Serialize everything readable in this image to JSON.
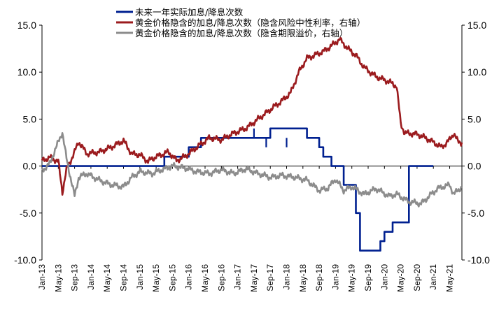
{
  "chart_data": {
    "type": "line",
    "ylim": [
      -10,
      15
    ],
    "y_ticks": [
      "15.0",
      "10.0",
      "5.0",
      "0.0",
      "-5.0",
      "-10.0"
    ],
    "y_ticks_right": [
      "15.0",
      "10.0",
      "5.0",
      "0.0",
      "-5.0",
      "-10.0"
    ],
    "x_range": [
      "2013-01",
      "2021-08"
    ],
    "x_ticks": [
      "Jan-13",
      "May-13",
      "Sep-13",
      "Jan-14",
      "May-14",
      "Sep-14",
      "Jan-15",
      "May-15",
      "Sep-15",
      "Jan-16",
      "May-16",
      "Sep-16",
      "Jan-17",
      "May-17",
      "Sep-17",
      "Jan-18",
      "May-18",
      "Sep-18",
      "Jan-19",
      "May-19",
      "Sep-19",
      "Jan-20",
      "May-20",
      "Sep-20",
      "Jan-21",
      "May-21"
    ],
    "legend_position": "top",
    "grid": false,
    "series": [
      {
        "name": "未来一年实际加息/降息次数",
        "color": "#002090",
        "step": true,
        "points": [
          [
            "2013-01",
            0
          ],
          [
            "2015-01",
            0
          ],
          [
            "2015-07",
            1
          ],
          [
            "2016-01",
            2
          ],
          [
            "2016-04",
            3
          ],
          [
            "2017-08",
            3
          ],
          [
            "2017-09",
            4
          ],
          [
            "2018-06",
            3
          ],
          [
            "2018-09",
            2
          ],
          [
            "2018-10",
            1
          ],
          [
            "2018-12",
            0
          ],
          [
            "2019-03",
            -2
          ],
          [
            "2019-06",
            -5
          ],
          [
            "2019-07",
            -9
          ],
          [
            "2019-12",
            -8
          ],
          [
            "2020-01",
            -7
          ],
          [
            "2020-03",
            -6
          ],
          [
            "2020-07",
            0
          ],
          [
            "2021-01",
            0
          ]
        ],
        "spikes": [
          [
            "2017-05",
            4
          ],
          [
            "2017-08",
            2
          ],
          [
            "2018-01",
            2
          ]
        ]
      },
      {
        "name": "黄金价格隐含的加息/降息次数（隐含风险中性利率，右轴）",
        "color": "#9b1b1e",
        "step": false,
        "points": [
          [
            "2013-01",
            0.6
          ],
          [
            "2013-03",
            0.9
          ],
          [
            "2013-05",
            0.5
          ],
          [
            "2013-06",
            -2.8
          ],
          [
            "2013-07",
            -0.4
          ],
          [
            "2013-09",
            1.5
          ],
          [
            "2013-10",
            2.6
          ],
          [
            "2013-12",
            1.3
          ],
          [
            "2014-03",
            1.5
          ],
          [
            "2014-06",
            2.0
          ],
          [
            "2014-09",
            2.7
          ],
          [
            "2014-11",
            1.3
          ],
          [
            "2015-01",
            1.2
          ],
          [
            "2015-03",
            0.5
          ],
          [
            "2015-05",
            1.0
          ],
          [
            "2015-08",
            1.5
          ],
          [
            "2015-10",
            0.6
          ],
          [
            "2015-12",
            1.0
          ],
          [
            "2016-03",
            2.0
          ],
          [
            "2016-06",
            3.0
          ],
          [
            "2016-09",
            2.8
          ],
          [
            "2016-12",
            3.5
          ],
          [
            "2017-03",
            4.0
          ],
          [
            "2017-06",
            5.0
          ],
          [
            "2017-09",
            6.0
          ],
          [
            "2017-12",
            7.0
          ],
          [
            "2018-02",
            7.8
          ],
          [
            "2018-04",
            10.0
          ],
          [
            "2018-06",
            11.5
          ],
          [
            "2018-08",
            11.8
          ],
          [
            "2018-10",
            12.2
          ],
          [
            "2018-12",
            12.8
          ],
          [
            "2019-02",
            13.5
          ],
          [
            "2019-04",
            12.5
          ],
          [
            "2019-06",
            11.8
          ],
          [
            "2019-08",
            10.5
          ],
          [
            "2019-11",
            9.5
          ],
          [
            "2020-02",
            9.0
          ],
          [
            "2020-04",
            8.5
          ],
          [
            "2020-05",
            4.5
          ],
          [
            "2020-06",
            3.5
          ],
          [
            "2020-09",
            3.4
          ],
          [
            "2020-12",
            2.8
          ],
          [
            "2021-03",
            2.0
          ],
          [
            "2021-05",
            2.8
          ],
          [
            "2021-06",
            3.5
          ],
          [
            "2021-07",
            2.6
          ],
          [
            "2021-08",
            2.5
          ]
        ]
      },
      {
        "name": "黄金价格隐含的加息/降息次数（隐含期限溢价，右轴）",
        "color": "#8c8c8c",
        "step": false,
        "points": [
          [
            "2013-01",
            -0.5
          ],
          [
            "2013-03",
            0.3
          ],
          [
            "2013-04",
            1.5
          ],
          [
            "2013-06",
            3.6
          ],
          [
            "2013-07",
            0.8
          ],
          [
            "2013-09",
            -3.2
          ],
          [
            "2013-10",
            -1.2
          ],
          [
            "2013-12",
            -0.8
          ],
          [
            "2014-03",
            -1.5
          ],
          [
            "2014-06",
            -2.0
          ],
          [
            "2014-09",
            -2.2
          ],
          [
            "2014-11",
            -1.2
          ],
          [
            "2015-01",
            -0.6
          ],
          [
            "2015-04",
            -0.8
          ],
          [
            "2015-07",
            -0.3
          ],
          [
            "2015-09",
            0.0
          ],
          [
            "2015-12",
            -0.2
          ],
          [
            "2016-03",
            -0.6
          ],
          [
            "2016-06",
            -0.8
          ],
          [
            "2016-09",
            -0.4
          ],
          [
            "2016-12",
            -0.8
          ],
          [
            "2017-03",
            -0.3
          ],
          [
            "2017-06",
            -0.8
          ],
          [
            "2017-09",
            -1.2
          ],
          [
            "2017-12",
            -1.0
          ],
          [
            "2018-03",
            -1.2
          ],
          [
            "2018-06",
            -1.5
          ],
          [
            "2018-09",
            -2.6
          ],
          [
            "2018-11",
            -2.4
          ],
          [
            "2019-01",
            -1.4
          ],
          [
            "2019-03",
            -2.6
          ],
          [
            "2019-05",
            -2.2
          ],
          [
            "2019-08",
            -3.0
          ],
          [
            "2019-11",
            -2.4
          ],
          [
            "2020-02",
            -3.2
          ],
          [
            "2020-04",
            -3.0
          ],
          [
            "2020-07",
            -3.8
          ],
          [
            "2020-10",
            -4.0
          ],
          [
            "2020-12",
            -3.2
          ],
          [
            "2021-02",
            -2.4
          ],
          [
            "2021-05",
            -2.0
          ],
          [
            "2021-06",
            -3.0
          ],
          [
            "2021-08",
            -2.2
          ]
        ]
      }
    ]
  }
}
